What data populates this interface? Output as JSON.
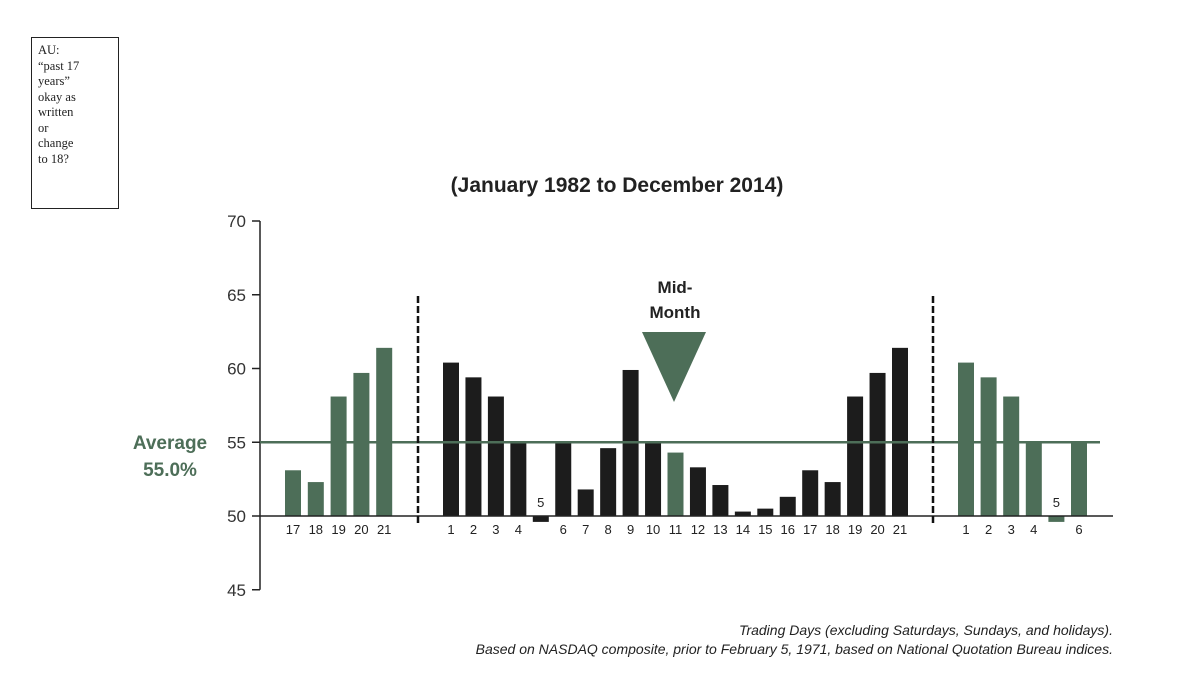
{
  "note": {
    "lines": [
      "AU:",
      "“past 17",
      "years”",
      "okay as",
      "written",
      "or",
      "change",
      "to 18?"
    ]
  },
  "colors": {
    "green": "#4d6e58",
    "black": "#1c1c1c",
    "average_line": "#4d6e58"
  },
  "chart_data": {
    "type": "bar",
    "title": "(January 1982 to December 2014)",
    "ylim": [
      45,
      70
    ],
    "yticks": [
      45,
      50,
      55,
      60,
      65,
      70
    ],
    "baseline": 50,
    "grid": false,
    "average": {
      "value": 55.0,
      "label_line1": "Average",
      "label_line2": "55.0%"
    },
    "annotation": {
      "line1": "Mid-",
      "line2": "Month",
      "marker": "down-triangle",
      "at_category": "11"
    },
    "xlabel_line1": "Trading Days (excluding Saturdays, Sundays, and holidays).",
    "xlabel_line2": "Based on NASDAQ composite, prior to February 5, 1971, based on National Quotation Bureau indices.",
    "groups": [
      {
        "categories": [
          "17",
          "18",
          "19",
          "20",
          "21"
        ],
        "values": [
          53.1,
          52.3,
          58.1,
          59.7,
          61.4
        ],
        "colors": [
          "green",
          "green",
          "green",
          "green",
          "green"
        ]
      },
      {
        "categories": [
          "1",
          "2",
          "3",
          "4",
          "5",
          "6",
          "7",
          "8",
          "9",
          "10",
          "11",
          "12",
          "13",
          "14",
          "15",
          "16",
          "17",
          "18",
          "19",
          "20",
          "21"
        ],
        "values": [
          60.4,
          59.4,
          58.1,
          55.0,
          49.6,
          55.0,
          51.8,
          54.6,
          59.9,
          55.0,
          54.3,
          53.3,
          52.1,
          50.3,
          50.5,
          51.3,
          53.1,
          52.3,
          58.1,
          59.7,
          61.4
        ],
        "colors": [
          "black",
          "black",
          "black",
          "black",
          "black",
          "black",
          "black",
          "black",
          "black",
          "black",
          "green",
          "black",
          "black",
          "black",
          "black",
          "black",
          "black",
          "black",
          "black",
          "black",
          "black"
        ]
      },
      {
        "categories": [
          "1",
          "2",
          "3",
          "4",
          "5",
          "6"
        ],
        "values": [
          60.4,
          59.4,
          58.1,
          55.0,
          49.6,
          55.0
        ],
        "colors": [
          "green",
          "green",
          "green",
          "green",
          "green",
          "green"
        ]
      }
    ]
  }
}
